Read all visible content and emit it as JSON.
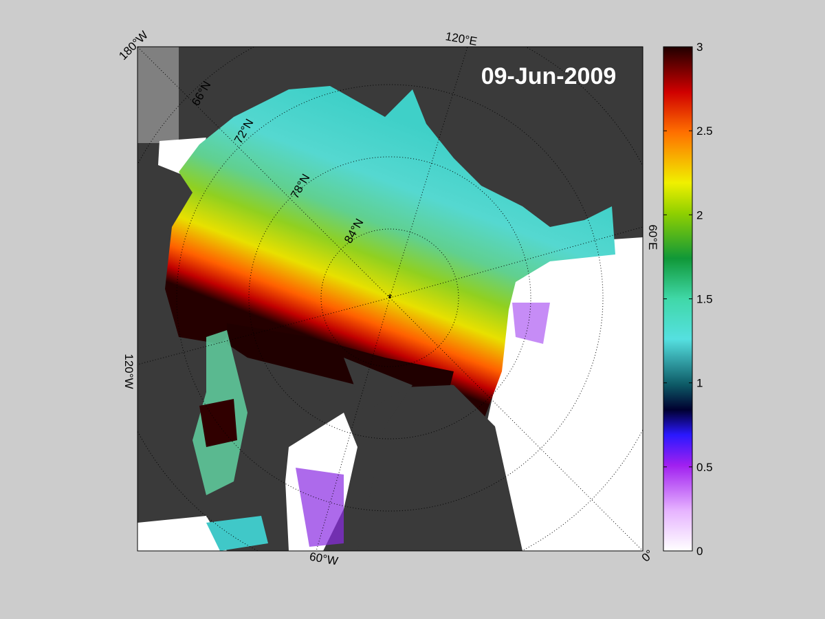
{
  "map": {
    "date": "09-Jun-2009",
    "longitude_labels": [
      "180°W",
      "120°E",
      "60°E",
      "0°",
      "60°W",
      "120°W"
    ],
    "latitude_labels": [
      "66°N",
      "72°N",
      "78°N",
      "84°N"
    ]
  },
  "colorbar": {
    "lim": [
      0,
      3
    ],
    "ticks": [
      0,
      0.5,
      1,
      1.5,
      2,
      2.5,
      3
    ]
  }
}
